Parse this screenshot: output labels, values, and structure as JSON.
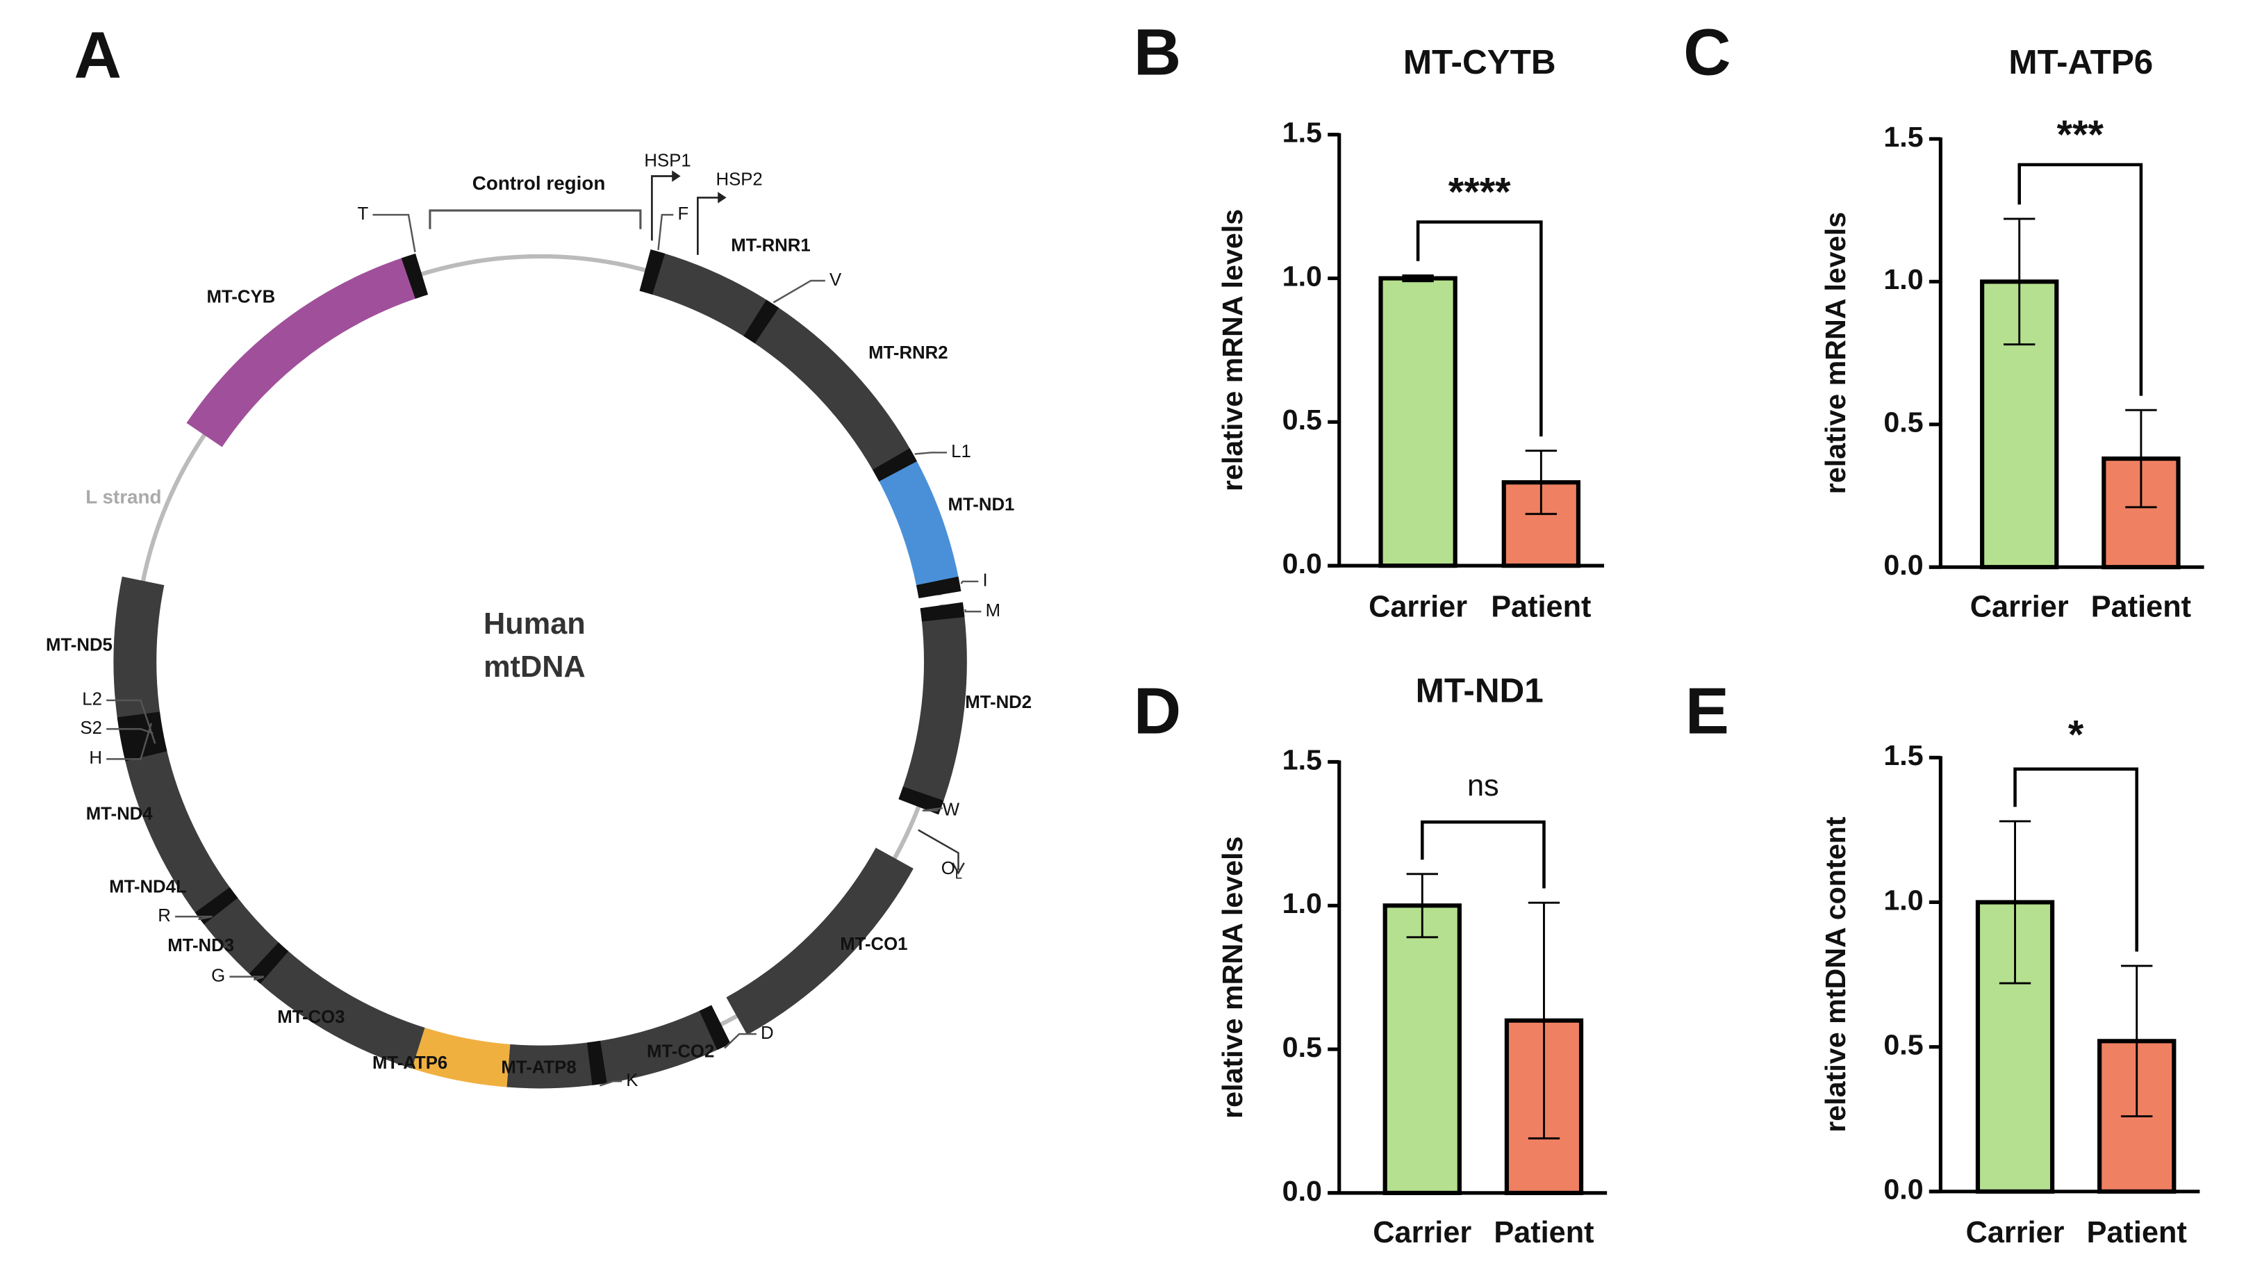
{
  "diagram": {
    "panel": "A",
    "center": [
      "Human",
      "mtDNA"
    ],
    "regions": [
      "Control region",
      "L strand"
    ],
    "genes": [
      "MT-CYB",
      "MT-RNR1",
      "MT-RNR2",
      "MT-ND1",
      "MT-ND2",
      "MT-CO1",
      "MT-CO2",
      "MT-ATP8",
      "MT-ATP6",
      "MT-CO3",
      "MT-ND3",
      "MT-ND4L",
      "MT-ND4",
      "MT-ND5"
    ],
    "markers": [
      "T",
      "F",
      "V",
      "L1",
      "I",
      "M",
      "W",
      "D",
      "K",
      "G",
      "R",
      "L2",
      "S2",
      "H"
    ],
    "origin": {
      "main": "O",
      "sub": "L"
    },
    "promoters": [
      "HSP1",
      "HSP2"
    ]
  },
  "chart_data": [
    {
      "panel": "B",
      "type": "bar",
      "title": "MT-CYTB",
      "y_label": "relative mRNA levels",
      "categories": [
        "Carrier",
        "Patient"
      ],
      "values": [
        1.0,
        0.29
      ],
      "errors": [
        0.01,
        0.11
      ],
      "colors": [
        "#b5e08f",
        "#ef8062"
      ],
      "ylim": [
        0,
        1.5
      ],
      "yticks": [
        {
          "value": 0,
          "label": "0.0"
        },
        {
          "value": 0.5,
          "label": "0.5"
        },
        {
          "value": 1,
          "label": "1.0"
        },
        {
          "value": 1.5,
          "label": "1.5"
        }
      ],
      "annotation": "****"
    },
    {
      "panel": "C",
      "type": "bar",
      "title": "MT-ATP6",
      "y_label": "relative mRNA levels",
      "categories": [
        "Carrier",
        "Patient"
      ],
      "values": [
        1.0,
        0.38
      ],
      "errors": [
        0.22,
        0.17
      ],
      "colors": [
        "#b5e08f",
        "#ef8062"
      ],
      "ylim": [
        0,
        1.5
      ],
      "yticks": [
        {
          "value": 0,
          "label": "0.0"
        },
        {
          "value": 0.5,
          "label": "0.5"
        },
        {
          "value": 1,
          "label": "1.0"
        },
        {
          "value": 1.5,
          "label": "1.5"
        }
      ],
      "annotation": "***"
    },
    {
      "panel": "D",
      "type": "bar",
      "title": "MT-ND1",
      "y_label": "relative mRNA levels",
      "categories": [
        "Carrier",
        "Patient"
      ],
      "values": [
        1.0,
        0.6
      ],
      "errors": [
        0.11,
        0.41
      ],
      "colors": [
        "#b5e08f",
        "#ef8062"
      ],
      "ylim": [
        0,
        1.5
      ],
      "yticks": [
        {
          "value": 0,
          "label": "0.0"
        },
        {
          "value": 0.5,
          "label": "0.5"
        },
        {
          "value": 1,
          "label": "1.0"
        },
        {
          "value": 1.5,
          "label": "1.5"
        }
      ],
      "annotation": "ns"
    },
    {
      "panel": "E",
      "type": "bar",
      "y_label": "relative mtDNA content",
      "categories": [
        "Carrier",
        "Patient"
      ],
      "values": [
        1.0,
        0.52
      ],
      "errors": [
        0.28,
        0.26
      ],
      "colors": [
        "#b5e08f",
        "#ef8062"
      ],
      "ylim": [
        0,
        1.5
      ],
      "yticks": [
        {
          "value": 0,
          "label": "0.0"
        },
        {
          "value": 0.5,
          "label": "0.5"
        },
        {
          "value": 1,
          "label": "1.0"
        },
        {
          "value": 1.5,
          "label": "1.5"
        }
      ],
      "annotation": "*"
    }
  ]
}
